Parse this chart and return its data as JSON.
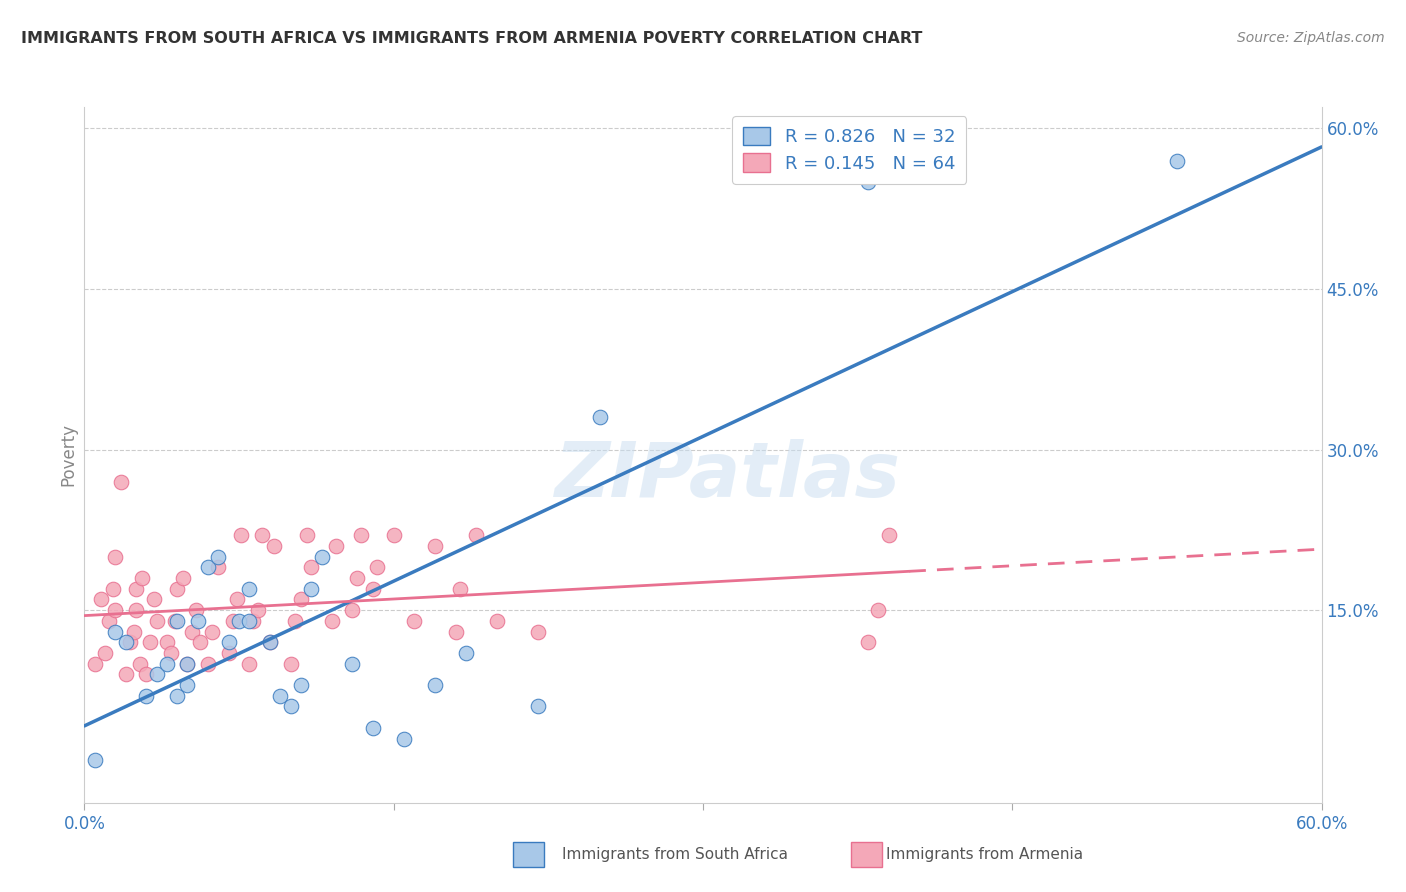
{
  "title": "IMMIGRANTS FROM SOUTH AFRICA VS IMMIGRANTS FROM ARMENIA POVERTY CORRELATION CHART",
  "source": "Source: ZipAtlas.com",
  "ylabel": "Poverty",
  "xlim": [
    0.0,
    0.6
  ],
  "ylim": [
    -0.03,
    0.62
  ],
  "xtick_vals": [
    0.0,
    0.15,
    0.3,
    0.45,
    0.6
  ],
  "ytick_vals": [
    0.15,
    0.3,
    0.45,
    0.6
  ],
  "color_sa": "#a8c8e8",
  "color_arm": "#f4a8b8",
  "line_color_sa": "#3a7bbf",
  "line_color_arm": "#e87090",
  "legend_text_color": "#3a7bbf",
  "R_sa": 0.826,
  "N_sa": 32,
  "R_arm": 0.145,
  "N_arm": 64,
  "watermark": "ZIPatlas",
  "sa_x": [
    0.005,
    0.015,
    0.02,
    0.03,
    0.035,
    0.04,
    0.045,
    0.045,
    0.05,
    0.05,
    0.055,
    0.06,
    0.065,
    0.07,
    0.075,
    0.08,
    0.08,
    0.09,
    0.095,
    0.1,
    0.105,
    0.11,
    0.115,
    0.13,
    0.14,
    0.155,
    0.17,
    0.185,
    0.22,
    0.25,
    0.38,
    0.53
  ],
  "sa_y": [
    0.01,
    0.13,
    0.12,
    0.07,
    0.09,
    0.1,
    0.07,
    0.14,
    0.08,
    0.1,
    0.14,
    0.19,
    0.2,
    0.12,
    0.14,
    0.14,
    0.17,
    0.12,
    0.07,
    0.06,
    0.08,
    0.17,
    0.2,
    0.1,
    0.04,
    0.03,
    0.08,
    0.11,
    0.06,
    0.33,
    0.55,
    0.57
  ],
  "arm_x": [
    0.005,
    0.008,
    0.01,
    0.012,
    0.014,
    0.015,
    0.015,
    0.018,
    0.02,
    0.022,
    0.024,
    0.025,
    0.025,
    0.027,
    0.028,
    0.03,
    0.032,
    0.034,
    0.035,
    0.04,
    0.042,
    0.044,
    0.045,
    0.048,
    0.05,
    0.052,
    0.054,
    0.056,
    0.06,
    0.062,
    0.065,
    0.07,
    0.072,
    0.074,
    0.076,
    0.08,
    0.082,
    0.084,
    0.086,
    0.09,
    0.092,
    0.1,
    0.102,
    0.105,
    0.108,
    0.11,
    0.12,
    0.122,
    0.13,
    0.132,
    0.134,
    0.14,
    0.142,
    0.15,
    0.16,
    0.17,
    0.18,
    0.182,
    0.19,
    0.2,
    0.22,
    0.38,
    0.385,
    0.39
  ],
  "arm_y": [
    0.1,
    0.16,
    0.11,
    0.14,
    0.17,
    0.15,
    0.2,
    0.27,
    0.09,
    0.12,
    0.13,
    0.15,
    0.17,
    0.1,
    0.18,
    0.09,
    0.12,
    0.16,
    0.14,
    0.12,
    0.11,
    0.14,
    0.17,
    0.18,
    0.1,
    0.13,
    0.15,
    0.12,
    0.1,
    0.13,
    0.19,
    0.11,
    0.14,
    0.16,
    0.22,
    0.1,
    0.14,
    0.15,
    0.22,
    0.12,
    0.21,
    0.1,
    0.14,
    0.16,
    0.22,
    0.19,
    0.14,
    0.21,
    0.15,
    0.18,
    0.22,
    0.17,
    0.19,
    0.22,
    0.14,
    0.21,
    0.13,
    0.17,
    0.22,
    0.14,
    0.13,
    0.12,
    0.15,
    0.22
  ]
}
